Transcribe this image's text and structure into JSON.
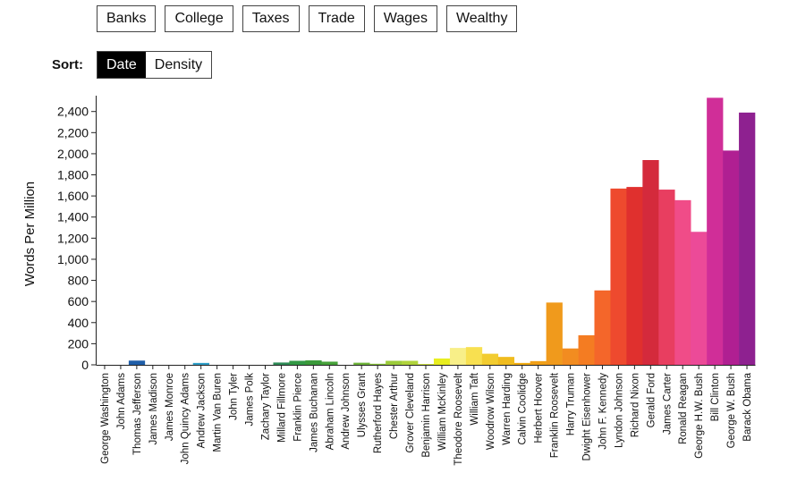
{
  "controls": {
    "topics": [
      "Banks",
      "College",
      "Taxes",
      "Trade",
      "Wages",
      "Wealthy"
    ],
    "sort_label": "Sort:",
    "sort_options": [
      "Date",
      "Density"
    ],
    "sort_active": "Date"
  },
  "chart_data": {
    "type": "bar",
    "title": "",
    "xlabel": "",
    "ylabel": "Words Per Million",
    "ylim": [
      0,
      2550
    ],
    "yticks": [
      0,
      200,
      400,
      600,
      800,
      1000,
      1200,
      1400,
      1600,
      1800,
      2000,
      2200,
      2400
    ],
    "ytick_labels": [
      "0",
      "200",
      "400",
      "600",
      "800",
      "1,000",
      "1,200",
      "1,400",
      "1,600",
      "1,800",
      "2,000",
      "2,200",
      "2,400"
    ],
    "categories": [
      "George Washington",
      "John Adams",
      "Thomas Jefferson",
      "James Madison",
      "James Monroe",
      "John Quincy Adams",
      "Andrew Jackson",
      "Martin Van Buren",
      "John Tyler",
      "James Polk",
      "Zachary Taylor",
      "Millard Fillmore",
      "Franklin Pierce",
      "James Buchanan",
      "Abraham Lincoln",
      "Andrew Johnson",
      "Ulysses Grant",
      "Rutherford Hayes",
      "Chester Arthur",
      "Grover Cleveland",
      "Benjamin Harrison",
      "William McKinley",
      "Theodore Roosevelt",
      "William Taft",
      "Woodrow Wilson",
      "Warren Harding",
      "Calvin Coolidge",
      "Herbert Hoover",
      "Franklin Roosevelt",
      "Harry Truman",
      "Dwight Eisenhower",
      "John F. Kennedy",
      "Lyndon Johnson",
      "Richard Nixon",
      "Gerald Ford",
      "James Carter",
      "Ronald Reagan",
      "George H.W. Bush",
      "Bill Clinton",
      "George W. Bush",
      "Barack Obama"
    ],
    "values": [
      0,
      0,
      40,
      0,
      0,
      0,
      18,
      0,
      0,
      0,
      0,
      22,
      38,
      42,
      30,
      0,
      20,
      10,
      38,
      38,
      8,
      60,
      160,
      168,
      105,
      75,
      18,
      35,
      590,
      155,
      280,
      705,
      1670,
      1685,
      1940,
      1660,
      1560,
      1260,
      2530,
      2030,
      2390
    ],
    "colors": [
      "#1f3b73",
      "#1f4e8c",
      "#1f5ea8",
      "#2166ac",
      "#2a7fbf",
      "#3a90cc",
      "#2f9fc8",
      "#30a0b8",
      "#2e9a9a",
      "#2e9a80",
      "#2f9a6a",
      "#2e8b57",
      "#339945",
      "#3a9a3a",
      "#46a23a",
      "#58aa3a",
      "#6eb43a",
      "#86bf3a",
      "#9ccc3a",
      "#b0d43c",
      "#c8de3c",
      "#e8ee20",
      "#f8ef88",
      "#f8e050",
      "#f2cc30",
      "#f0bc1e",
      "#f0ac14",
      "#f0a018",
      "#f09a1c",
      "#f28c20",
      "#f47c22",
      "#f4662a",
      "#ee4a2e",
      "#e0302e",
      "#d42a3c",
      "#e83e60",
      "#f04c88",
      "#ec4a98",
      "#d02e98",
      "#b01f92",
      "#8e2190"
    ]
  }
}
